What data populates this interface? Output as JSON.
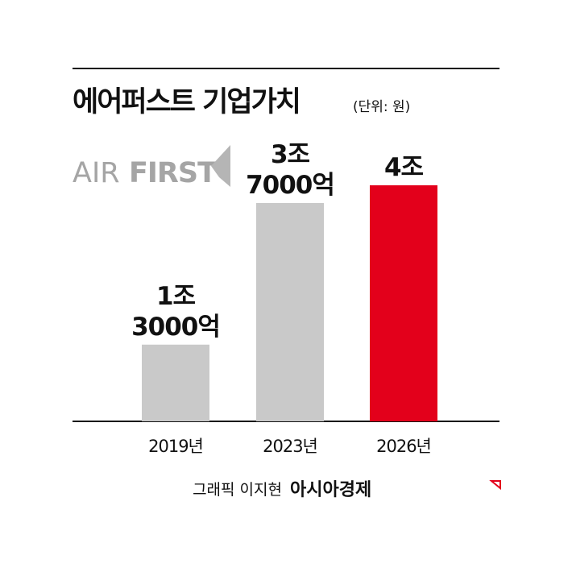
{
  "chart_data": {
    "type": "bar",
    "title": "에어퍼스트 기업가치",
    "subtitle": "(단위: 원)",
    "categories": [
      "2019년",
      "2023년",
      "2026년"
    ],
    "values": [
      1300000000000,
      3700000000000,
      4000000000000
    ],
    "value_labels": [
      [
        "1조",
        "3000억"
      ],
      [
        "3조",
        "7000억"
      ],
      [
        "4조"
      ]
    ],
    "colors": [
      "#c9c9c9",
      "#c9c9c9",
      "#e3001b"
    ]
  },
  "logo": {
    "light": "AIR",
    "bold": "FIRST"
  },
  "credit": {
    "author": "그래픽 이지현",
    "publisher": "아시아경제"
  }
}
